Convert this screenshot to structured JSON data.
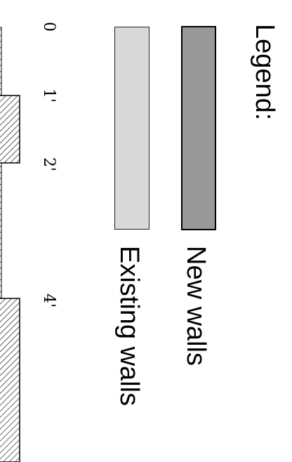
{
  "legend": {
    "title": "Legend:",
    "items": [
      {
        "label": "New walls",
        "color": "#999999"
      },
      {
        "label": "Existing walls",
        "color": "#d9d9d9"
      }
    ]
  },
  "scale": {
    "ticks": [
      "0",
      "1'",
      "2'",
      "4'"
    ]
  }
}
